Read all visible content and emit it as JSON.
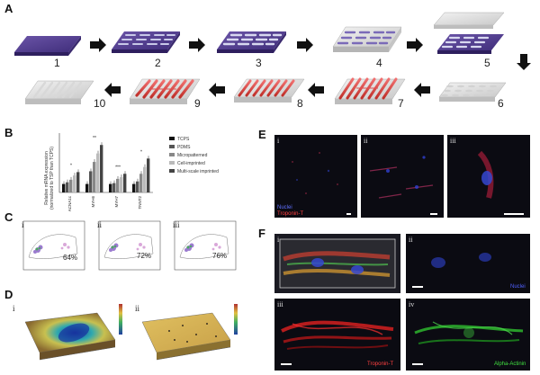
{
  "panels": {
    "A": {
      "letter": "A",
      "steps": [
        "1",
        "2",
        "3",
        "4",
        "5",
        "6",
        "7",
        "8",
        "9",
        "10"
      ]
    },
    "B": {
      "letter": "B",
      "ylabel": "Relative mRNA expression\n(normalized to TSP than TCPS)",
      "legend": [
        "TCPS",
        "PDMS",
        "Micropatterned",
        "Cell-imprinted",
        "Multi-scale imprinted"
      ],
      "legend_colors": [
        "#111111",
        "#555555",
        "#888888",
        "#bbbbbb",
        "#444444"
      ],
      "genes": [
        "CACNA1c",
        "MYH6",
        "MYH7",
        "TNNT2"
      ],
      "sig_marks": [
        "*",
        "**",
        "***"
      ]
    },
    "C": {
      "letter": "C",
      "subpanels": [
        "i",
        "ii",
        "iii"
      ],
      "percentages": [
        "64%",
        "72%",
        "76%"
      ]
    },
    "D": {
      "letter": "D",
      "subpanels": [
        "i",
        "ii"
      ]
    },
    "E": {
      "letter": "E",
      "subpanels": [
        "i",
        "ii",
        "iii"
      ],
      "channel_labels": [
        "Nuclei",
        "Troponin-T"
      ]
    },
    "F": {
      "letter": "F",
      "subpanels": [
        "i",
        "ii",
        "iii",
        "iv"
      ],
      "channel_labels": {
        "ii": "Nuclei",
        "iii": "Troponin-T",
        "iv": "Alpha-Actinin"
      }
    }
  },
  "chart_data": {
    "type": "bar",
    "categories": [
      "CACNA1c",
      "MYH6",
      "MYH7",
      "TNNT2"
    ],
    "series": [
      {
        "name": "TCPS",
        "values": [
          1.0,
          1.0,
          1.0,
          1.0
        ]
      },
      {
        "name": "PDMS",
        "values": [
          1.2,
          2.5,
          1.1,
          1.3
        ]
      },
      {
        "name": "Micropatterned",
        "values": [
          1.5,
          3.6,
          1.6,
          2.2
        ]
      },
      {
        "name": "Cell-imprinted",
        "values": [
          2.0,
          4.6,
          1.8,
          3.0
        ]
      },
      {
        "name": "Multi-scale imprinted",
        "values": [
          2.4,
          5.6,
          2.2,
          4.0
        ]
      }
    ],
    "ylim": [
      0,
      7
    ],
    "ylabel": "Relative mRNA expression\n(normalized to TSP than TCPS)",
    "legend": "right"
  }
}
